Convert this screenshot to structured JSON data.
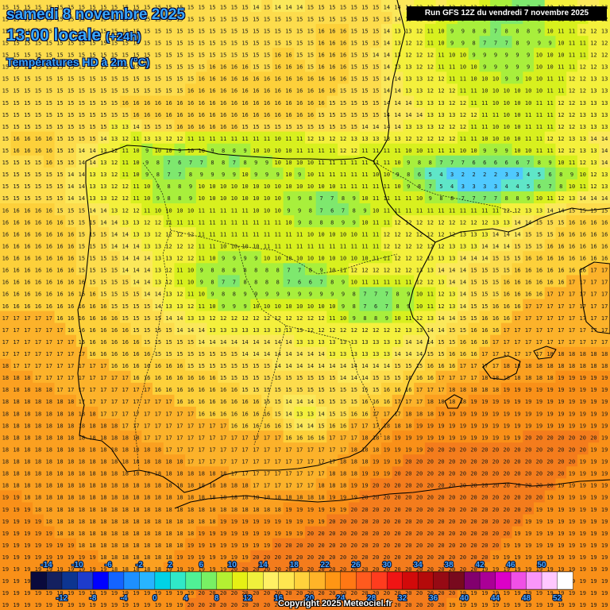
{
  "header": {
    "date": "samedi 8 novembre 2025",
    "time": "13:00 locale",
    "offset": "(+24h)",
    "parameter": "Températures HD à 2m (°C)",
    "run": "Run GFS 12Z du vendredi 7 novembre 2025"
  },
  "footer": {
    "copyright": "Copyright 2025 Meteociel.fr"
  },
  "legend": {
    "upper_labels": [
      "-14",
      "-10",
      "-6",
      "-2",
      "2",
      "6",
      "10",
      "14",
      "18",
      "22",
      "26",
      "30",
      "34",
      "38",
      "42",
      "46",
      "50"
    ],
    "lower_labels": [
      "-12",
      "-8",
      "-4",
      "0",
      "4",
      "8",
      "12",
      "16",
      "20",
      "24",
      "28",
      "32",
      "36",
      "40",
      "44",
      "48",
      "52"
    ],
    "colors": [
      "#0a0a3c",
      "#14205f",
      "#0d3590",
      "#1e3ccc",
      "#0000ff",
      "#1464ff",
      "#1e90ff",
      "#28b4ff",
      "#00d2e6",
      "#30e8c8",
      "#50f096",
      "#78f064",
      "#b4f032",
      "#e6f014",
      "#f0f03c",
      "#fff064",
      "#ffe650",
      "#ffd23c",
      "#ffb428",
      "#ff9614",
      "#ff7814",
      "#ff5a1e",
      "#ff3c1e",
      "#f01414",
      "#d20a0a",
      "#b40a0a",
      "#960a14",
      "#780a1e",
      "#82006e",
      "#aa0096",
      "#dc00c8",
      "#f050e6",
      "#fa96fa",
      "#ffc8ff",
      "#ffffff"
    ]
  },
  "temperature_grid": {
    "unit": "°C",
    "rows": [
      "15 15 15 15 15 15 15 15 15 15 15 15 15 15 15 15 15 15 15 15 15 15 15 14 15 14 14 14 15 15 15 15 15 15 15 14 14 14 13 13 14 13 12 13 11 9 8 7 7 7 12 12 13 14 14 13",
      "15 15 15 15 15 15 15 15 15 15 15 15 15 15 15 15 15 15 15 15 15 15 15 15 15 15 15 15 15 15 15 15 15 15 15 15 14 13 12 12 11 10 9 9 8 7 7 7 8 9 10 11 11 11 12 12",
      "15 15 15 15 15 15 15 15 15 15 15 15 15 15 15 15 15 15 15 15 15 15 15 15 15 15 15 15 15 16 16 16 15 15 15 14 13 13 12 11 10 9 9 8 8 7 8 8 8 9 10 11 11 12 12 13",
      "15 15 15 15 15 15 15 15 15 15 15 15 15 15 15 15 15 15 15 15 15 15 15 15 15 15 15 15 15 16 16 16 15 15 15 14 13 12 12 11 10 9 9 8 7 7 7 8 9 9 9 10 11 11 12 12",
      "15 15 15 15 15 15 15 15 15 15 15 15 15 15 15 15 15 15 15 15 15 15 15 15 15 16 16 15 15 16 16 16 15 15 14 14 13 12 12 12 11 10 10 9 9 9 9 9 9 10 10 10 11 11 12 12",
      "15 15 15 15 15 15 15 15 15 15 15 15 15 15 15 15 15 15 15 16 16 16 16 15 15 16 16 16 15 16 16 16 15 15 15 14 13 13 12 12 11 11 10 10 9 9 9 9 9 10 10 11 11 12 12 13",
      "15 15 15 15 15 15 15 15 15 15 15 15 15 15 15 15 15 15 16 16 16 16 16 16 16 16 16 16 16 16 16 16 15 15 15 14 14 13 13 12 12 11 11 10 10 10 9 9 10 10 11 11 12 12 13 13",
      "15 15 15 15 15 15 15 15 15 15 15 15 15 15 15 15 15 16 16 16 16 16 16 16 16 16 16 16 16 16 16 15 15 15 15 14 14 13 13 12 12 12 11 11 10 10 10 10 10 10 11 11 12 12 13 13",
      "15 15 15 15 15 15 15 15 15 15 15 16 16 16 16 16 16 16 16 16 16 16 16 16 16 16 16 16 16 16 15 15 15 15 15 14 14 14 13 13 13 12 12 11 11 10 10 10 10 11 11 12 12 13 13 13",
      "15 15 15 15 15 15 15 15 15 15 15 15 16 16 16 16 16 16 16 16 16 16 16 16 16 16 16 16 16 15 15 15 15 15 15 14 14 14 14 13 13 13 12 12 11 11 10 10 11 11 11 12 12 13 13 13",
      "15 15 15 15 15 15 15 15 15 15 13 13 14 15 15 15 16 16 16 16 16 16 15 15 15 15 15 15 15 15 15 15 15 14 14 14 14 13 13 13 12 12 12 11 11 10 10 10 11 11 11 12 12 13 13 13",
      "15 16 16 16 16 15 15 15 15 14 13 12 11 13 13 12 12 11 11 11 11 11 11 11 11 10 11 11 12 13 12 12 13 13 13 13 13 12 12 12 12 12 11 11 10 10 10 10 11 11 12 12 13 13 14 14",
      "15 16 16 16 16 15 15 14 14 13 12 11 10 9 10 10 9 10 10 9 8 8 9 10 10 10 10 11 11 11 11 12 12 11 11 11 11 10 10 11 11 11 10 10 9 9 9 10 10 11 11 12 12 13 13 14",
      "15 15 15 15 16 15 15 14 14 13 12 11 10 9 8 7 6 7 7 8 8 7 8 9 9 10 10 10 10 11 11 11 11 11 11 11 10 9 8 8 7 7 7 6 6 6 6 6 7 8 9 10 11 12 13 14",
      "15 15 15 15 15 15 14 14 13 13 12 11 10 9 8 7 7 8 9 9 9 9 10 9 9 9 10 9 10 11 11 11 11 11 10 10 9 8 6 5 4 3 2 2 2 2 3 3 4 5 6 8 9 10 12 13",
      "15 15 15 15 15 15 14 14 13 13 12 12 11 10 9 8 8 9 10 10 10 10 10 10 10 10 10 10 10 10 10 11 11 11 11 11 10 9 8 7 5 4 3 3 3 3 4 4 5 6 7 8 10 11 12 13",
      "15 15 15 15 15 15 14 14 13 13 12 12 11 10 9 8 8 9 10 10 10 10 10 10 10 10 9 9 8 7 7 8 9 10 11 11 11 11 10 9 8 8 7 7 7 7 8 8 9 10 11 12 13 14 14 14",
      "16 16 16 16 16 15 15 15 14 14 13 12 12 11 10 10 10 10 11 11 11 11 11 10 10 10 9 9 8 7 6 7 8 9 10 11 11 11 11 11 11 11 11 11 11 11 12 12 13 13 14 14 15 15 15 15",
      "16 16 16 16 16 16 15 15 15 14 14 13 13 12 12 11 11 11 11 11 11 11 11 11 11 11 10 9 8 8 8 9 9 10 11 11 12 12 12 12 12 12 12 12 12 13 13 14 14 15 15 15 16 16 16 16",
      "16 16 16 16 16 16 16 15 15 15 14 14 13 13 12 12 12 12 11 11 11 11 11 11 11 11 11 11 10 10 10 10 10 11 11 12 12 12 12 12 12 12 13 13 13 14 14 14 15 15 15 16 16 16 16 16",
      "16 16 16 16 16 16 16 15 15 15 14 14 14 13 13 12 12 12 11 11 10 10 10 10 11 11 11 11 11 11 11 11 11 11 11 12 12 12 12 12 12 13 13 13 14 14 14 15 15 15 16 16 16 16 16 16",
      "16 16 16 16 16 16 16 15 15 15 15 14 14 14 13 13 12 12 11 10 9 9 9 9 10 10 10 10 10 10 10 10 10 10 11 11 12 12 12 13 13 13 14 14 14 15 15 15 16 16 16 16 16 16 16 16",
      "16 16 16 16 16 16 16 15 15 15 15 14 14 14 13 12 11 10 9 8 8 8 8 8 8 8 7 7 8 9 10 11 12 12 12 12 12 12 13 13 14 14 14 15 15 15 15 16 16 16 16 16 16 16 17 17",
      "16 16 16 16 16 16 16 16 15 15 15 15 14 14 13 12 11 10 9 8 7 7 8 8 8 8 7 6 6 7 8 9 10 11 11 11 11 11 12 12 13 14 14 15 15 15 16 16 16 16 16 16 17 17 17 17",
      "16 16 16 16 16 16 16 16 16 15 15 15 15 14 14 13 12 11 10 9 8 8 9 9 9 9 9 9 9 9 9 9 8 7 7 7 8 9 10 11 12 13 14 15 15 15 16 16 16 16 17 17 17 17 17 17",
      "16 16 16 16 16 16 16 16 16 16 15 15 15 15 14 13 13 12 11 10 9 9 9 10 10 10 10 10 10 10 10 9 8 7 6 7 8 9 10 11 12 13 14 15 15 16 16 16 17 17 17 17 17 17 17 17",
      "17 17 17 17 17 16 16 16 16 16 16 15 15 15 15 14 14 13 13 12 12 12 12 12 12 12 12 12 12 12 11 10 9 8 8 9 10 11 12 13 14 14 15 15 16 16 16 17 17 17 17 17 17 17 17 17",
      "17 17 17 17 17 17 16 16 16 16 16 16 15 15 15 15 14 14 14 13 13 13 13 13 13 13 13 13 12 12 12 12 12 12 12 12 12 13 13 14 14 15 15 16 16 16 17 17 17 17 17 17 17 17 17 17",
      "17 17 17 17 17 17 17 16 16 16 16 16 16 15 15 15 15 15 14 14 14 14 14 14 14 14 14 13 13 13 13 13 13 13 13 13 13 14 14 14 15 15 16 16 16 17 17 17 17 17 17 17 17 17 17 17",
      "17 17 17 17 17 17 17 17 16 16 16 16 16 16 15 15 15 15 15 15 15 15 14 14 14 14 14 14 14 14 13 13 13 13 13 13 14 14 14 15 15 16 16 16 17 17 17 17 17 17 18 18 18 18 18 18",
      "18 17 17 17 17 17 17 17 17 17 16 16 16 16 16 16 16 15 15 15 15 15 15 15 15 14 14 14 14 14 14 14 14 14 14 14 15 15 15 16 16 16 17 17 17 17 18 18 18 18 18 18 18 18 18 18",
      "18 18 18 17 17 17 17 17 17 17 17 17 16 16 16 16 16 16 16 16 15 15 15 15 15 15 15 15 15 15 15 14 14 14 15 15 15 16 16 16 17 17 17 17 18 18 18 18 18 18 18 19 19 19 19 19",
      "18 18 18 18 18 17 17 17 17 17 17 17 17 17 16 16 16 16 16 16 16 16 15 15 15 15 15 15 15 15 15 15 15 15 15 16 16 16 17 17 17 18 18 18 18 18 19 19 19 19 19 19 19 19 19 19",
      "18 18 18 18 18 18 18 17 17 17 17 17 17 17 17 17 16 16 16 16 16 16 16 16 15 15 14 14 14 15 15 15 15 16 16 16 17 17 17 18 18 18 18 19 19 19 19 19 19 19 19 19 19 19 19 19",
      "18 18 18 18 18 18 18 18 18 17 17 17 17 17 17 17 17 17 16 16 16 16 16 16 16 15 14 13 13 14 15 15 16 16 17 17 17 18 18 18 19 19 19 19 19 19 19 19 19 19 19 19 19 19 19 19",
      "18 18 18 18 18 18 18 18 18 18 18 17 17 17 17 17 17 17 17 17 17 16 16 16 16 16 15 14 14 15 16 16 17 17 17 18 18 18 19 19 19 19 19 19 19 19 19 19 19 19 19 19 19 19 19 19",
      "18 18 18 18 18 18 18 18 18 18 18 18 18 17 17 17 17 17 17 17 17 17 17 17 17 17 16 16 16 16 17 17 17 18 18 18 19 19 19 19 19 19 19 19 19 19 19 19 20 20 20 20 20 20 20 19",
      "18 18 18 18 18 18 18 18 18 18 18 18 18 18 18 17 17 17 17 17 17 17 17 17 17 17 17 17 17 17 17 17 18 18 18 19 19 19 19 20 20 20 20 20 20 20 20 20 20 20 20 20 20 20 19 19",
      "18 18 18 18 18 18 18 18 18 18 18 18 18 18 18 18 18 17 17 17 17 17 17 17 17 17 17 17 17 17 17 18 18 18 19 19 19 20 20 20 20 20 20 20 20 20 20 20 20 20 20 20 20 19 19 19",
      "18 18 18 18 18 18 18 18 18 18 18 18 18 18 18 18 18 18 18 18 18 17 17 17 17 17 17 17 17 17 18 18 18 19 19 19 20 20 20 20 20 20 20 20 20 20 20 20 20 20 20 20 19 19 19 19",
      "18 18 18 18 18 18 18 18 18 18 18 18 18 18 18 18 18 18 18 18 18 18 18 17 17 17 17 17 17 18 18 18 19 19 20 20 20 20 20 20 20 20 20 20 20 20 20 20 20 20 20 19 19 19 19 19",
      "19 19 18 18 18 18 18 18 18 18 18 18 18 18 18 18 18 18 18 18 18 18 18 18 18 18 18 18 18 18 19 19 19 20 20 20 20 20 20 20 20 20 20 20 20 20 20 20 20 20 19 19 19 19 19 19",
      "19 19 19 18 18 18 18 18 18 18 18 18 18 18 18 18 18 18 18 18 18 18 18 18 18 18 19 19 19 19 19 19 20 20 20 20 20 20 20 20 20 20 20 20 20 20 20 20 20 19 19 19 19 19 19 19",
      "19 19 19 19 18 18 18 18 18 18 18 18 18 18 18 18 18 18 18 18 19 19 19 19 19 19 19 19 19 19 20 20 20 20 20 20 20 20 20 20 20 20 20 20 20 20 20 20 19 19 19 19 19 19 19 19",
      "19 19 19 19 19 18 18 18 18 18 18 18 18 18 18 18 18 18 19 19 19 19 19 19 19 19 19 19 20 20 20 20 20 20 20 20 20 20 20 20 20 20 20 20 20 20 20 19 19 19 19 19 19 19 19 19",
      "19 19 19 19 19 19 19 18 18 18 18 18 18 18 18 18 18 19 19 19 19 19 19 19 19 20 20 20 20 20 20 20 20 20 20 20 20 20 20 20 20 20 20 20 20 20 19 19 19 19 19 19 19 19 19 19",
      "19 19 19 19 19 19 19 19 19 18 18 18 18 18 18 18 19 19 19 19 19 19 19 20 20 20 20 20 20 20 20 20 20 20 20 20 20 20 20 20 20 20 20 20 20 19 19 19 19 19 19 19 19 19 19 19",
      "19 19 19 19 19 19 19 19 19 19 18 18 18 18 18 19 19 19 19 19 19 20 20 20 20 20 20 20 20 20 20 20 20 20 20 20 20 20 20 20 20 20 20 20 19 19 19 19 19 19 19 19 19 19 19 19",
      "19 19 19 19 19 19 19 19 19 19 19 19 19 19 19 19 19 19 19 20 20 20 20 20 20 20 20 20 20 20 20 20 20 20 20 20 20 20 20 20 20 20 20 19 19 19 19 19 19 19 19 19 19 19 19 19",
      "19 19 19 19 19 19 19 19 19 19 19 19 19 19 19 19 19 19 20 20 20 20 20 20 20 20 20 20 20 20 20 20 20 20 20 20 20 20 20 20 20 20 19 19 19 19 19 19 19 19 19 19 19 19 19 19",
      "19 19 19 19 19 19 19 19 19 19 19 19 19 19 19 19 19 20 20 20 20 20 20 20 20 20 20 20 20 20 20 20 20 20 20 20 20 20 20 20 20 19 19 19 19 19 19 19 19 19 19 19 19 19 19 19"
    ]
  }
}
